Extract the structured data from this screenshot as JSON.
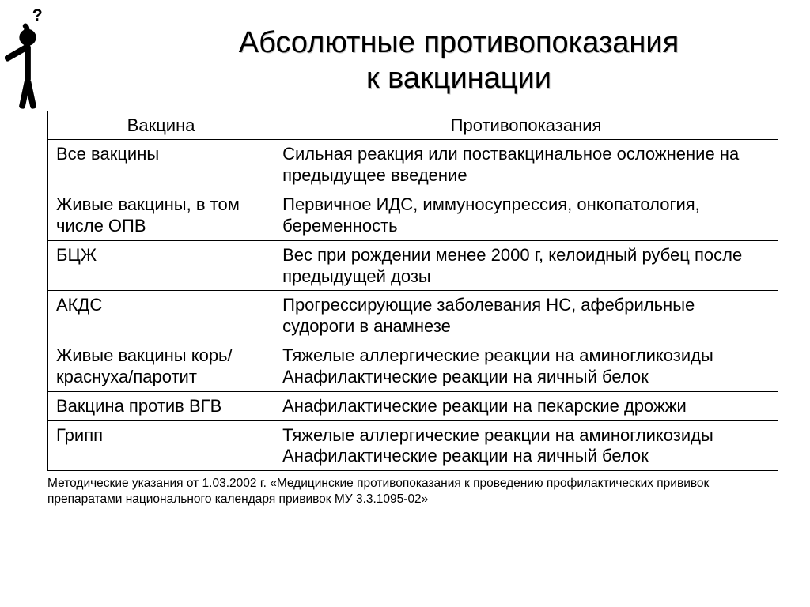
{
  "title_line1": "Абсолютные противопоказания",
  "title_line2": "к вакцинации",
  "table": {
    "header": {
      "col1": "Вакцина",
      "col2": "Противопоказания"
    },
    "rows": [
      {
        "c1": "Все вакцины",
        "c2": "Сильная реакция или поствакцинальное осложнение на предыдущее введение"
      },
      {
        "c1": "Живые вакцины, в том числе ОПВ",
        "c2": "Первичное ИДС, иммуносупрессия, онкопатология, беременность"
      },
      {
        "c1": "БЦЖ",
        "c2": "Вес при рождении менее 2000 г, келоидный рубец после предыдущей дозы"
      },
      {
        "c1": "АКДС",
        "c2": "Прогрессирующие заболевания НС, афебрильные судороги в анамнезе"
      },
      {
        "c1": "Живые вакцины корь/краснуха/паротит",
        "c2": "Тяжелые аллергические реакции на аминогликозиды\nАнафилактические реакции на яичный белок"
      },
      {
        "c1": "Вакцина против ВГВ",
        "c2": "Анафилактические реакции на пекарские дрожжи"
      },
      {
        "c1": "Грипп",
        "c2": "Тяжелые аллергические реакции на аминогликозиды\nАнафилактические реакции на яичный белок"
      }
    ]
  },
  "footnote": "Методические указания от 1.03.2002 г. «Медицинские противопоказания к проведению профилактических прививок препаратами национального календаря прививок МУ 3.3.1095-02»"
}
